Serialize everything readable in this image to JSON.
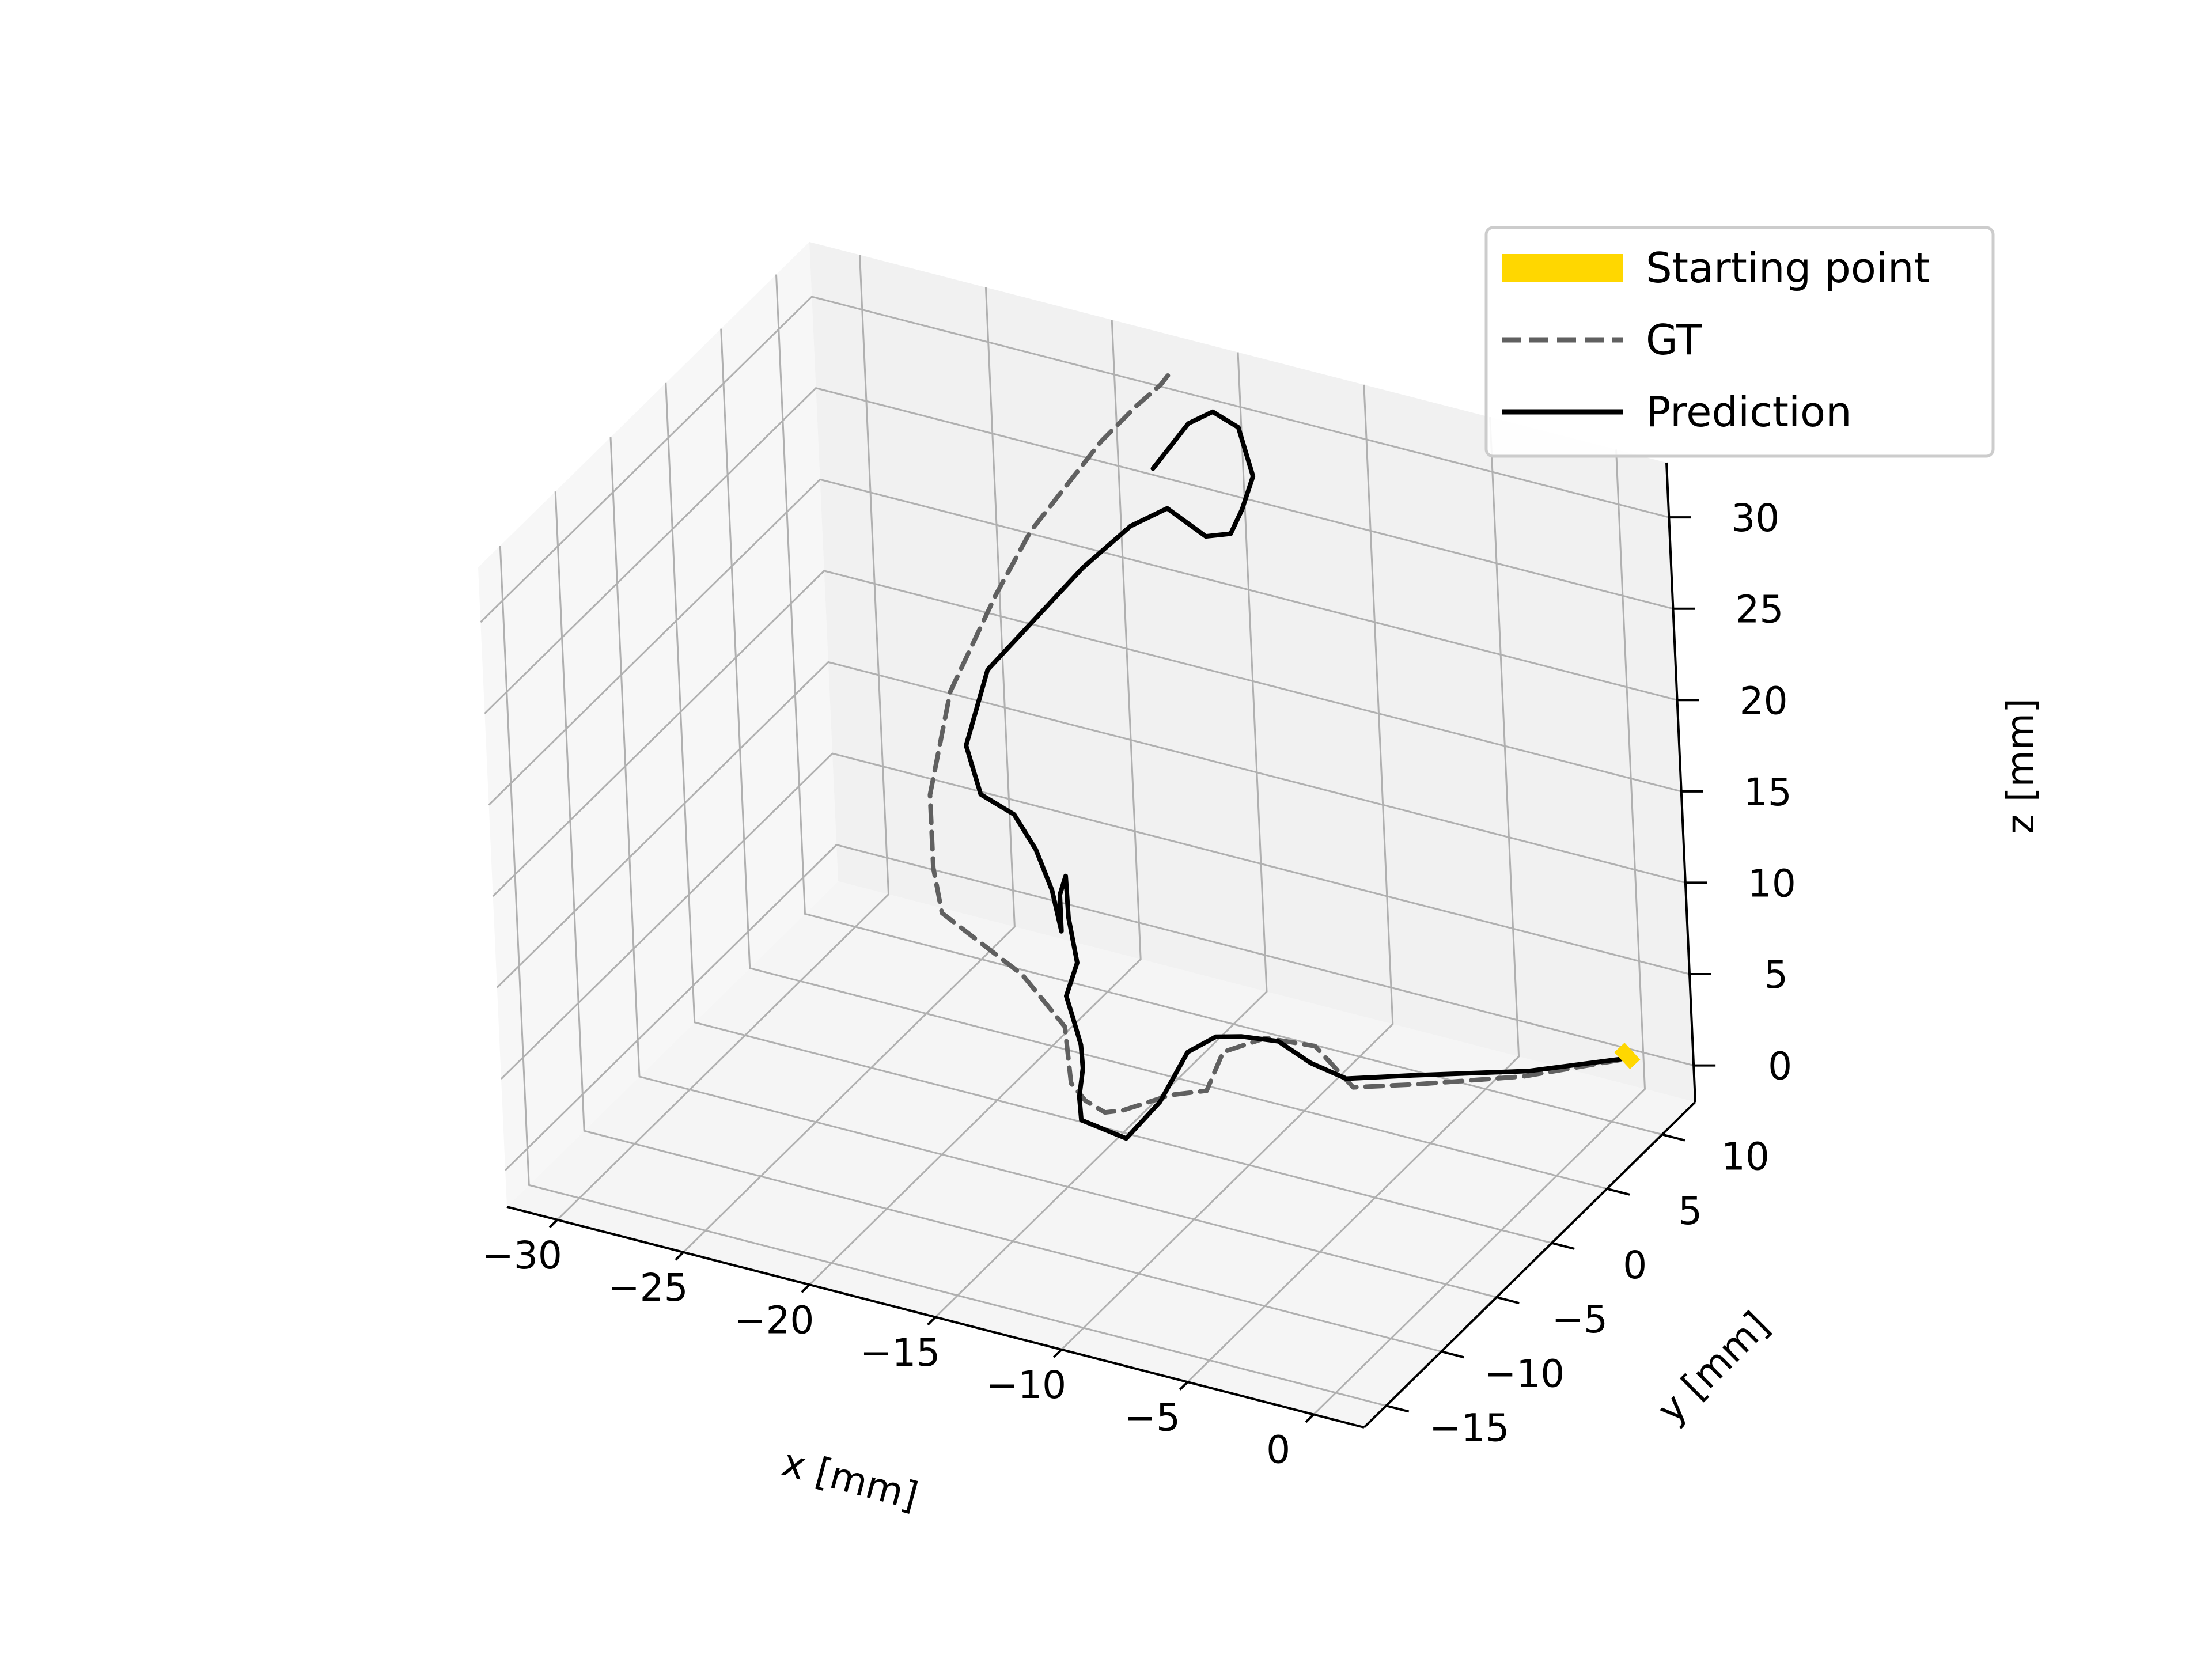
{
  "chart_data": {
    "type": "line",
    "projection": "3d",
    "title": "",
    "xlabel": "x [mm]",
    "ylabel": "y [mm]",
    "zlabel": "z [mm]",
    "xlim": [
      -32,
      2
    ],
    "ylim": [
      -17,
      13
    ],
    "zlim": [
      -2,
      33
    ],
    "x_ticks": [
      -30,
      -25,
      -20,
      -15,
      -10,
      -5,
      0
    ],
    "y_ticks": [
      -15,
      -10,
      -5,
      0,
      5,
      10
    ],
    "z_ticks": [
      0,
      5,
      10,
      15,
      20,
      25,
      30
    ],
    "x_tick_labels": [
      "−30",
      "−25",
      "−20",
      "−15",
      "−10",
      "−5",
      "0"
    ],
    "y_tick_labels": [
      "−15",
      "−10",
      "−5",
      "0",
      "5",
      "10"
    ],
    "z_tick_labels": [
      "0",
      "5",
      "10",
      "15",
      "20",
      "25",
      "30"
    ],
    "grid": true,
    "legend_position": "top-right",
    "series": [
      {
        "name": "Starting point",
        "style": "thick-solid",
        "color": "#FFD700",
        "points": [
          [
            -0.4,
            12.0,
            0.0
          ],
          [
            -0.2,
            12.5,
            0.3
          ]
        ]
      },
      {
        "name": "GT",
        "style": "dashed",
        "color": "#606060",
        "points": [
          [
            -0.5,
            12.0,
            0.0
          ],
          [
            -3.0,
            9.0,
            0.0
          ],
          [
            -6.0,
            6.5,
            0.0
          ],
          [
            -8.0,
            5.0,
            0.0
          ],
          [
            -9.0,
            4.0,
            2.5
          ],
          [
            -10.5,
            3.0,
            3.0
          ],
          [
            -12.0,
            2.5,
            2.0
          ],
          [
            -12.5,
            2.0,
            0.0
          ],
          [
            -13.5,
            1.0,
            0.0
          ],
          [
            -14.0,
            0.0,
            0.0
          ],
          [
            -14.5,
            -1.0,
            0.0
          ],
          [
            -15.0,
            -1.5,
            0.0
          ],
          [
            -16.0,
            -1.0,
            0.0
          ],
          [
            -17.0,
            0.0,
            0.0
          ],
          [
            -17.5,
            1.0,
            0.0
          ],
          [
            -18.0,
            2.0,
            0.0
          ],
          [
            -19.0,
            4.0,
            0.0
          ],
          [
            -20.0,
            5.0,
            0.0
          ],
          [
            -22.0,
            7.0,
            0.0
          ],
          [
            -25.0,
            9.0,
            0.0
          ],
          [
            -26.5,
            10.0,
            0.0
          ],
          [
            -27.0,
            10.5,
            2.0
          ],
          [
            -27.0,
            10.5,
            6.0
          ],
          [
            -26.0,
            10.5,
            12.0
          ],
          [
            -24.0,
            10.5,
            18.0
          ],
          [
            -22.5,
            10.5,
            22.0
          ],
          [
            -21.0,
            10.5,
            25.0
          ],
          [
            -19.5,
            10.5,
            28.0
          ],
          [
            -18.0,
            10.5,
            30.5
          ],
          [
            -17.0,
            10.5,
            32.0
          ],
          [
            -16.5,
            10.5,
            33.0
          ]
        ]
      },
      {
        "name": "Prediction",
        "style": "solid",
        "color": "#000000",
        "points": [
          [
            -0.3,
            12.3,
            0.0
          ],
          [
            -3.0,
            9.5,
            0.0
          ],
          [
            -6.5,
            7.0,
            0.0
          ],
          [
            -8.5,
            5.5,
            0.0
          ],
          [
            -9.2,
            4.0,
            1.5
          ],
          [
            -10.0,
            3.0,
            3.0
          ],
          [
            -11.0,
            2.0,
            3.5
          ],
          [
            -11.8,
            1.5,
            3.5
          ],
          [
            -12.5,
            0.5,
            3.0
          ],
          [
            -13.0,
            -1.0,
            1.0
          ],
          [
            -13.5,
            -3.0,
            0.0
          ],
          [
            -15.5,
            -2.5,
            0.0
          ],
          [
            -16.0,
            -1.5,
            0.5
          ],
          [
            -16.5,
            0.0,
            1.0
          ],
          [
            -17.0,
            1.0,
            1.5
          ],
          [
            -17.5,
            1.5,
            2.5
          ],
          [
            -17.5,
            1.0,
            4.0
          ],
          [
            -17.0,
            1.0,
            6.0
          ],
          [
            -17.5,
            1.5,
            8.0
          ],
          [
            -18.0,
            2.5,
            9.5
          ],
          [
            -18.5,
            3.0,
            8.0
          ],
          [
            -18.5,
            3.0,
            6.0
          ],
          [
            -19.5,
            4.5,
            7.0
          ],
          [
            -21.0,
            6.5,
            7.5
          ],
          [
            -22.5,
            8.0,
            8.0
          ],
          [
            -24.5,
            9.5,
            7.5
          ],
          [
            -25.0,
            9.5,
            10.0
          ],
          [
            -24.0,
            9.5,
            14.5
          ],
          [
            -22.0,
            9.5,
            18.0
          ],
          [
            -20.0,
            9.5,
            21.5
          ],
          [
            -19.0,
            9.5,
            23.0
          ],
          [
            -18.0,
            9.5,
            24.5
          ],
          [
            -16.5,
            9.5,
            26.0
          ],
          [
            -15.0,
            9.5,
            25.0
          ],
          [
            -14.0,
            9.5,
            25.5
          ],
          [
            -13.5,
            9.5,
            27.0
          ],
          [
            -13.0,
            9.5,
            29.0
          ],
          [
            -13.5,
            9.5,
            31.5
          ],
          [
            -14.5,
            9.5,
            32.0
          ],
          [
            -15.5,
            9.5,
            31.0
          ],
          [
            -16.5,
            9.5,
            29.0
          ],
          [
            -17.0,
            9.5,
            28.0
          ]
        ]
      }
    ]
  }
}
